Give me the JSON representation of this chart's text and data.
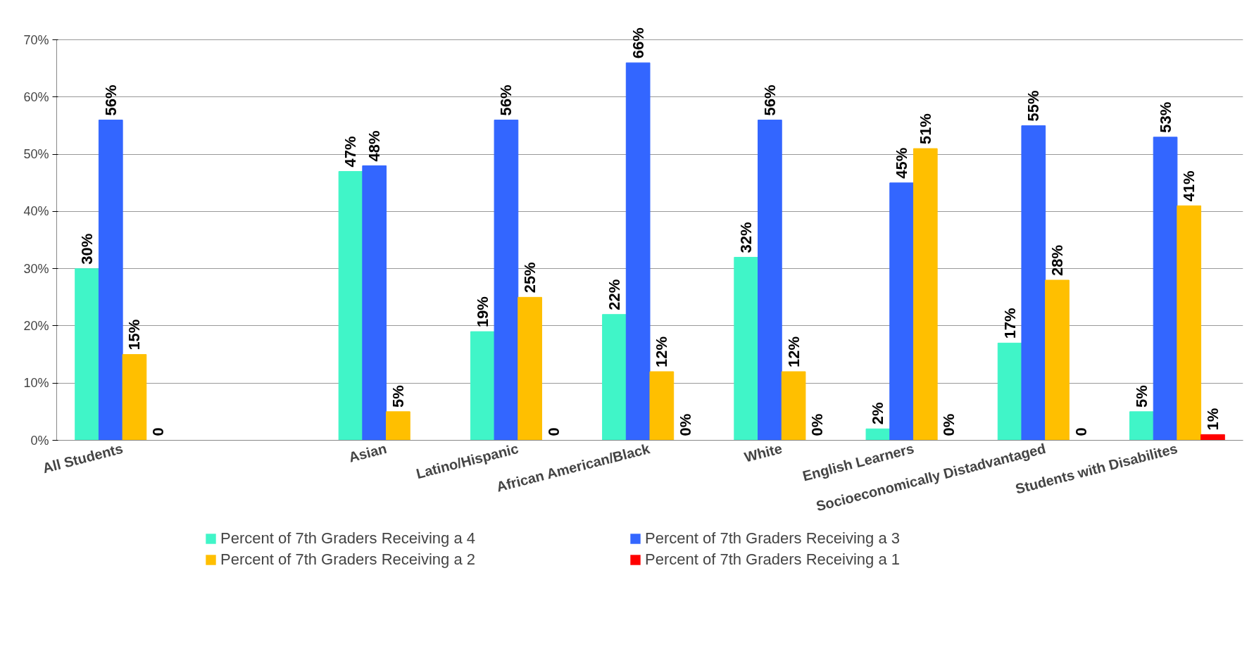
{
  "chart_data": {
    "type": "bar",
    "categories": [
      "All Students",
      null,
      "Asian",
      "Latino/Hispanic",
      "African American/Black",
      "White",
      "English Learners",
      "Socioeconomically Distadvantaged",
      "Students with Disabilites"
    ],
    "series": [
      {
        "name": "Percent of 7th Graders Receiving a 4",
        "color": "#40f5c8",
        "values": [
          30,
          null,
          47,
          19,
          22,
          32,
          2,
          17,
          5
        ],
        "value_labels": [
          "30%",
          null,
          "47%",
          "19%",
          "22%",
          "32%",
          "2%",
          "17%",
          "5%"
        ]
      },
      {
        "name": "Percent of 7th Graders Receiving a 3",
        "color": "#3366ff",
        "values": [
          56,
          null,
          48,
          56,
          66,
          56,
          45,
          55,
          53
        ],
        "value_labels": [
          "56%",
          null,
          "48%",
          "56%",
          "66%",
          "56%",
          "45%",
          "55%",
          "53%"
        ]
      },
      {
        "name": "Percent of 7th Graders Receiving a 2",
        "color": "#ffbf00",
        "values": [
          15,
          null,
          5,
          25,
          12,
          12,
          51,
          28,
          41
        ],
        "value_labels": [
          "15%",
          null,
          "5%",
          "25%",
          "12%",
          "12%",
          "51%",
          "28%",
          "41%"
        ]
      },
      {
        "name": "Percent of 7th Graders Receiving a 1",
        "color": "#ff0000",
        "values": [
          0,
          null,
          null,
          0,
          0,
          0,
          0,
          0,
          1
        ],
        "value_labels": [
          "0",
          null,
          null,
          "0",
          "0%",
          "0%",
          "0%",
          "0",
          "1%"
        ]
      }
    ],
    "ylim": [
      0,
      70
    ],
    "yticks": [
      {
        "value": 0,
        "label": "0%"
      },
      {
        "value": 10,
        "label": "10%"
      },
      {
        "value": 20,
        "label": "20%"
      },
      {
        "value": 30,
        "label": "30%"
      },
      {
        "value": 40,
        "label": "40%"
      },
      {
        "value": 50,
        "label": "50%"
      },
      {
        "value": 60,
        "label": "60%"
      },
      {
        "value": 70,
        "label": "70%"
      }
    ],
    "grid": "y",
    "legend": "bottom"
  }
}
